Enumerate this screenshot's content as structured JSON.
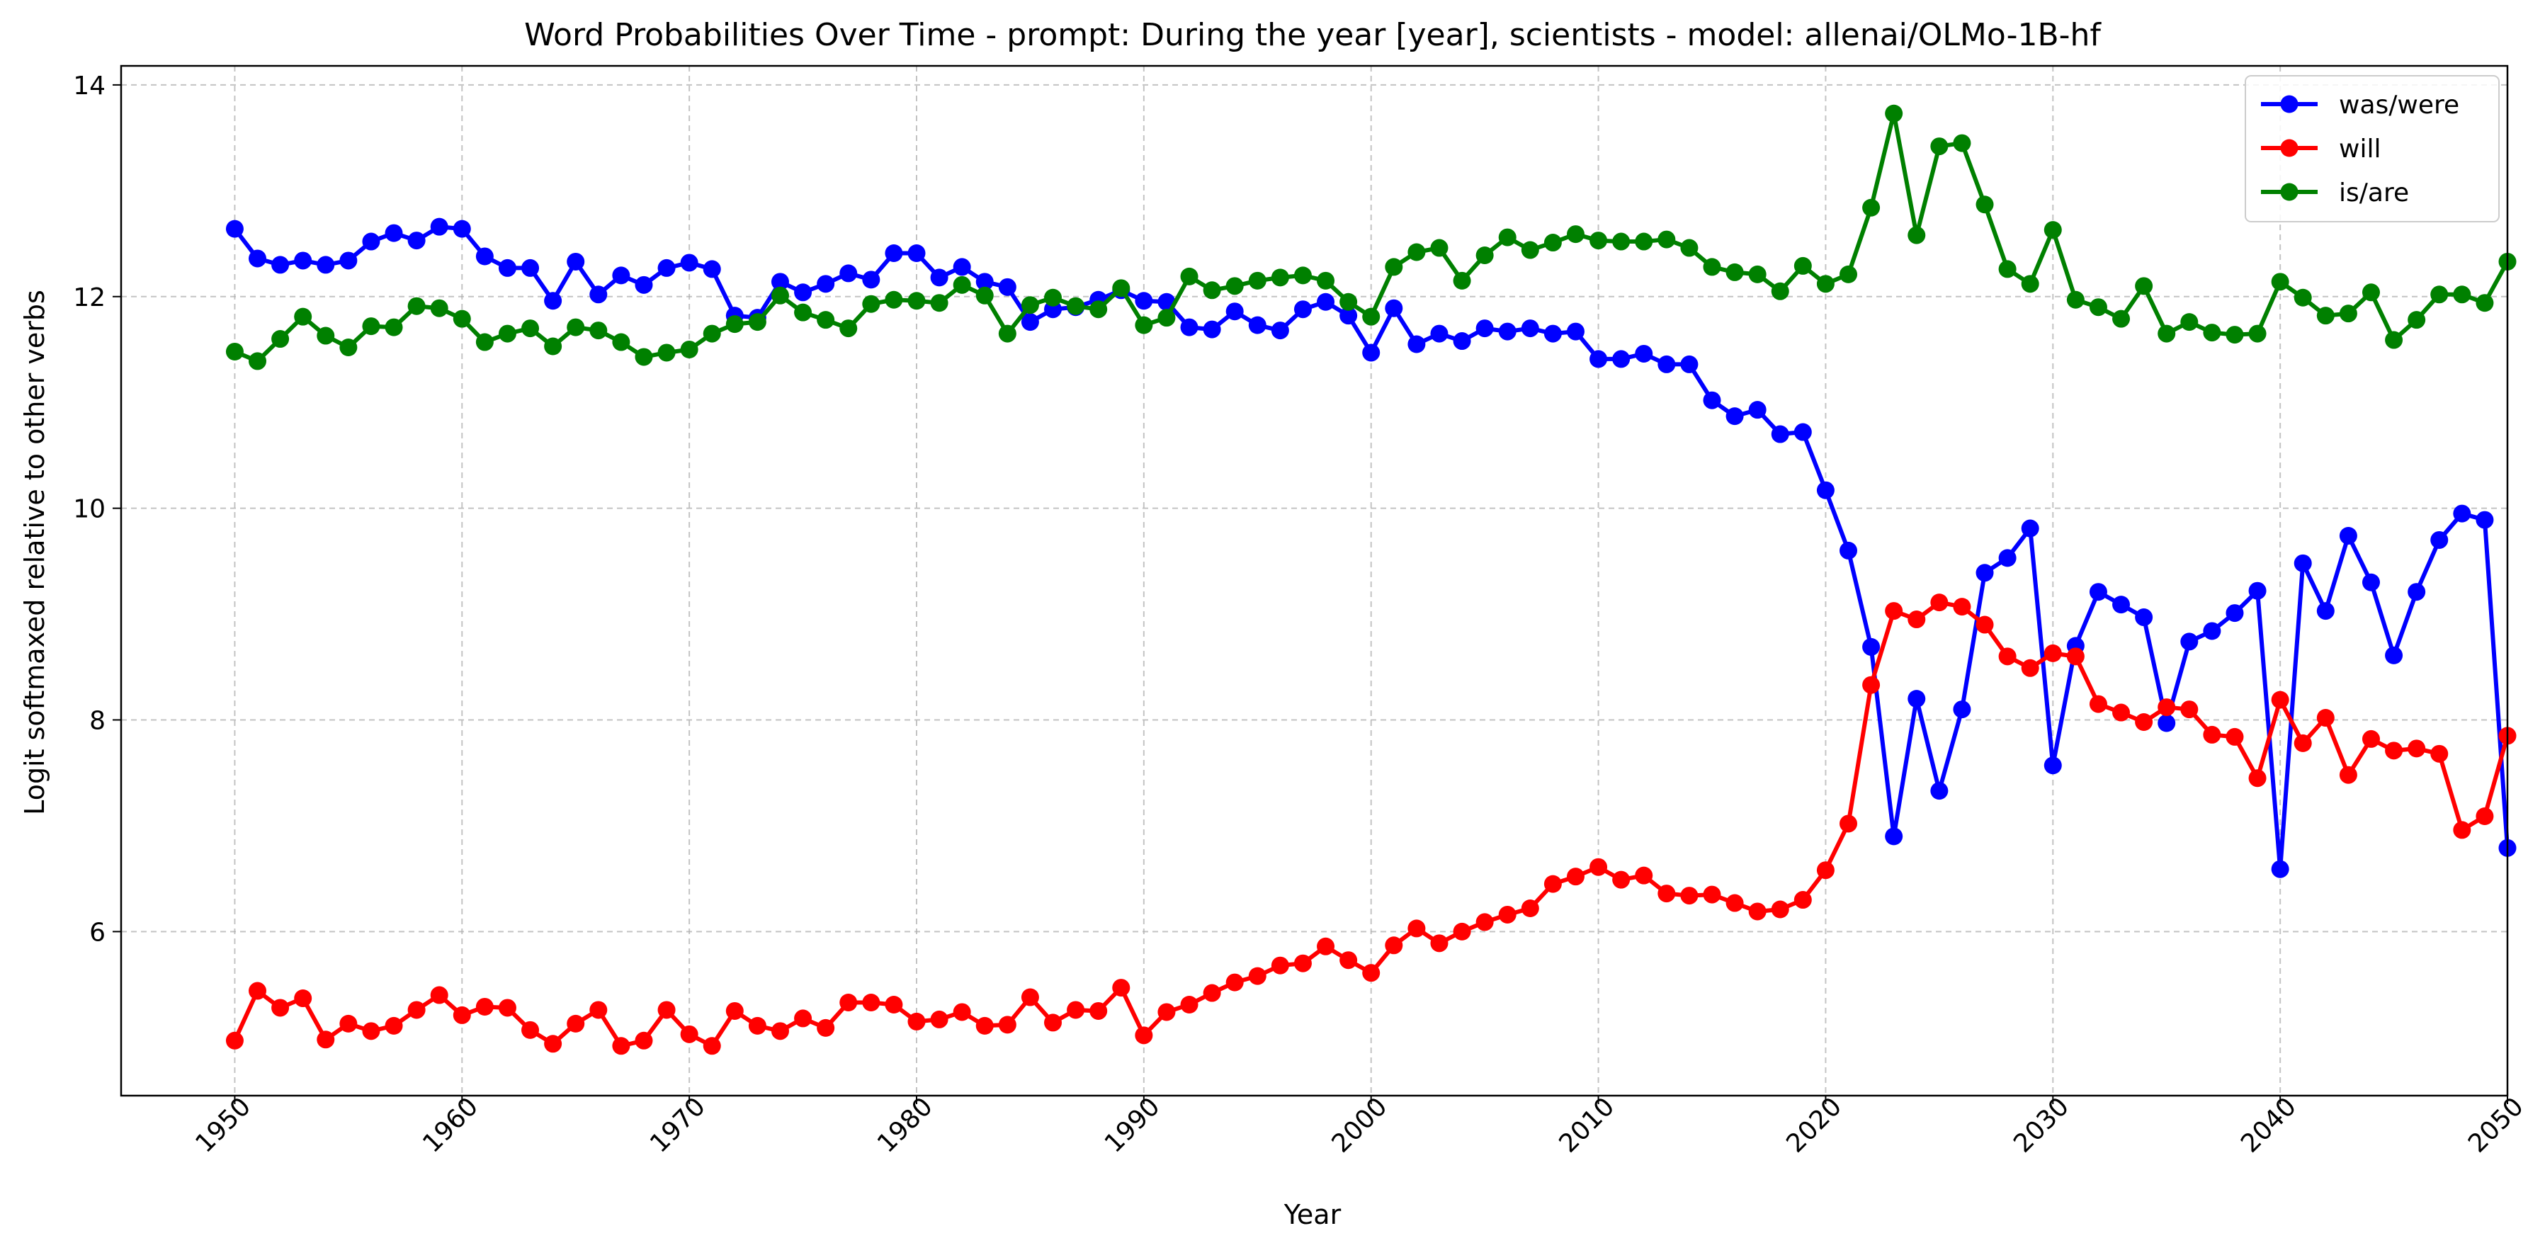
{
  "chart_data": {
    "type": "line",
    "title": "Word Probabilities Over Time - prompt: During the year [year], scientists - model: allenai/OLMo-1B-hf",
    "xlabel": "Year",
    "ylabel": "Logit softmaxed relative to other verbs",
    "xlim": [
      1945,
      2050
    ],
    "ylim": [
      4.45,
      14.18
    ],
    "xticks": [
      1950,
      1960,
      1970,
      1980,
      1990,
      2000,
      2010,
      2020,
      2030,
      2040,
      2050
    ],
    "yticks": [
      6,
      8,
      10,
      12,
      14
    ],
    "grid": true,
    "legend_position": "top-right",
    "x": [
      1950,
      1951,
      1952,
      1953,
      1954,
      1955,
      1956,
      1957,
      1958,
      1959,
      1960,
      1961,
      1962,
      1963,
      1964,
      1965,
      1966,
      1967,
      1968,
      1969,
      1970,
      1971,
      1972,
      1973,
      1974,
      1975,
      1976,
      1977,
      1978,
      1979,
      1980,
      1981,
      1982,
      1983,
      1984,
      1985,
      1986,
      1987,
      1988,
      1989,
      1990,
      1991,
      1992,
      1993,
      1994,
      1995,
      1996,
      1997,
      1998,
      1999,
      2000,
      2001,
      2002,
      2003,
      2004,
      2005,
      2006,
      2007,
      2008,
      2009,
      2010,
      2011,
      2012,
      2013,
      2014,
      2015,
      2016,
      2017,
      2018,
      2019,
      2020,
      2021,
      2022,
      2023,
      2024,
      2025,
      2026,
      2027,
      2028,
      2029,
      2030,
      2031,
      2032,
      2033,
      2034,
      2035,
      2036,
      2037,
      2038,
      2039,
      2040,
      2041,
      2042,
      2043,
      2044,
      2045,
      2046,
      2047,
      2048,
      2049,
      2050
    ],
    "series": [
      {
        "name": "was/were",
        "color": "#0000ff",
        "values": [
          12.64,
          12.36,
          12.3,
          12.34,
          12.3,
          12.34,
          12.52,
          12.6,
          12.53,
          12.66,
          12.64,
          12.38,
          12.27,
          12.27,
          11.96,
          12.33,
          12.02,
          12.2,
          12.11,
          12.27,
          12.32,
          12.26,
          11.82,
          11.8,
          12.14,
          12.04,
          12.12,
          12.22,
          12.16,
          12.41,
          12.41,
          12.18,
          12.28,
          12.14,
          12.09,
          11.76,
          11.88,
          11.9,
          11.97,
          12.06,
          11.96,
          11.95,
          11.71,
          11.69,
          11.86,
          11.73,
          11.68,
          11.88,
          11.95,
          11.82,
          11.47,
          11.89,
          11.55,
          11.65,
          11.58,
          11.7,
          11.67,
          11.7,
          11.65,
          11.67,
          11.41,
          11.41,
          11.46,
          11.36,
          11.36,
          11.02,
          10.87,
          10.93,
          10.7,
          10.72,
          10.17,
          9.6,
          8.69,
          6.9,
          8.2,
          7.33,
          8.1,
          9.39,
          9.53,
          9.81,
          7.57,
          8.7,
          9.21,
          9.09,
          8.97,
          7.97,
          8.74,
          8.84,
          9.01,
          9.22,
          6.59,
          9.48,
          9.03,
          9.74,
          9.3,
          8.61,
          9.21,
          9.7,
          9.95,
          9.89,
          6.79
        ]
      },
      {
        "name": "will",
        "color": "#ff0000",
        "values": [
          4.97,
          5.44,
          5.28,
          5.37,
          4.98,
          5.13,
          5.06,
          5.11,
          5.26,
          5.4,
          5.21,
          5.29,
          5.28,
          5.07,
          4.94,
          5.13,
          5.26,
          4.92,
          4.97,
          5.26,
          5.03,
          4.92,
          5.25,
          5.11,
          5.06,
          5.18,
          5.09,
          5.33,
          5.33,
          5.31,
          5.15,
          5.17,
          5.24,
          5.11,
          5.12,
          5.38,
          5.14,
          5.26,
          5.25,
          5.47,
          5.02,
          5.24,
          5.31,
          5.42,
          5.52,
          5.58,
          5.68,
          5.7,
          5.86,
          5.73,
          5.61,
          5.87,
          6.03,
          5.89,
          6.0,
          6.09,
          6.16,
          6.22,
          6.45,
          6.52,
          6.61,
          6.49,
          6.53,
          6.36,
          6.34,
          6.35,
          6.27,
          6.19,
          6.21,
          6.3,
          6.58,
          7.02,
          8.33,
          9.03,
          8.95,
          9.11,
          9.07,
          8.9,
          8.6,
          8.49,
          8.63,
          8.6,
          8.15,
          8.07,
          7.98,
          8.12,
          8.1,
          7.86,
          7.84,
          7.45,
          8.19,
          7.78,
          8.02,
          7.48,
          7.82,
          7.71,
          7.73,
          7.68,
          6.96,
          7.09,
          7.85
        ]
      },
      {
        "name": "is/are",
        "color": "#008000",
        "values": [
          11.48,
          11.39,
          11.6,
          11.81,
          11.63,
          11.52,
          11.72,
          11.71,
          11.91,
          11.89,
          11.79,
          11.57,
          11.65,
          11.7,
          11.53,
          11.71,
          11.68,
          11.57,
          11.43,
          11.47,
          11.5,
          11.65,
          11.74,
          11.76,
          12.01,
          11.85,
          11.78,
          11.7,
          11.93,
          11.97,
          11.96,
          11.94,
          12.11,
          12.01,
          11.65,
          11.92,
          11.99,
          11.91,
          11.88,
          12.08,
          11.73,
          11.8,
          12.19,
          12.06,
          12.1,
          12.15,
          12.18,
          12.2,
          12.15,
          11.95,
          11.81,
          12.28,
          12.42,
          12.46,
          12.15,
          12.39,
          12.56,
          12.44,
          12.51,
          12.59,
          12.53,
          12.52,
          12.52,
          12.54,
          12.46,
          12.28,
          12.23,
          12.21,
          12.05,
          12.29,
          12.12,
          12.21,
          12.84,
          13.73,
          12.58,
          13.42,
          13.45,
          12.87,
          12.26,
          12.12,
          12.63,
          11.97,
          11.9,
          11.79,
          12.1,
          11.65,
          11.76,
          11.66,
          11.64,
          11.65,
          12.14,
          11.99,
          11.82,
          11.84,
          12.04,
          11.59,
          11.78,
          12.02,
          12.02,
          11.94,
          12.33
        ]
      }
    ]
  }
}
